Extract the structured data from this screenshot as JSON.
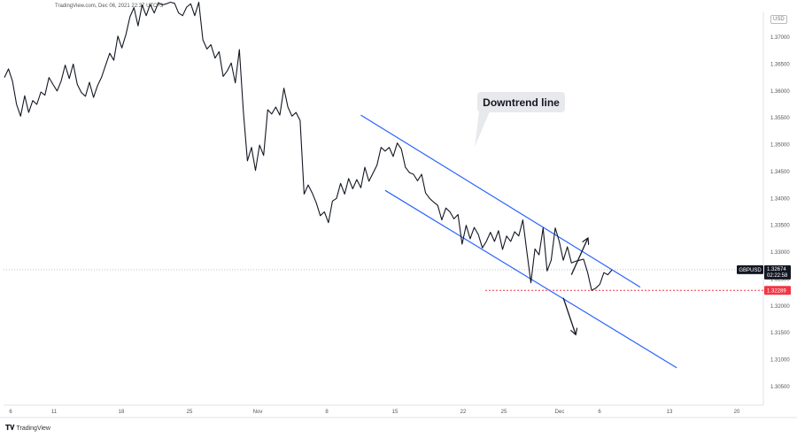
{
  "header": {
    "source_text": "TradingView.com, Dec 06, 2021 22:37 UTC+3"
  },
  "currency": "USD",
  "footer": {
    "logo_text": "TradingView",
    "logo_icon": "tradingview-logo-icon"
  },
  "colors": {
    "price_line": "#131722",
    "channel": "#2962ff",
    "support_line": "#f23645",
    "badge_dark": "#131722",
    "badge_red": "#f23645",
    "axis_text": "#555555",
    "grid_dotted": "#9598a1"
  },
  "annotation": {
    "text": "Downtrend line"
  },
  "chart_data": {
    "type": "line",
    "title": "",
    "xlabel": "",
    "ylabel": "",
    "grid": false,
    "legend": "none",
    "ylim": [
      1.3025,
      1.3765
    ],
    "x_ticks": [
      "6",
      "11",
      "18",
      "25",
      "Nov",
      "8",
      "15",
      "22",
      "25",
      "Dec",
      "6",
      "13",
      "20"
    ],
    "y_ticks": [
      "1.37000",
      "1.36500",
      "1.36000",
      "1.35500",
      "1.35000",
      "1.34500",
      "1.34000",
      "1.33500",
      "1.33000",
      "1.32500",
      "1.32000",
      "1.31500",
      "1.31000",
      "1.30500"
    ],
    "series": [
      {
        "name": "GBPUSD",
        "last_value": "1.32674",
        "countdown": "02:22:58",
        "values": [
          1.3625,
          1.3641,
          1.3618,
          1.3575,
          1.3553,
          1.3591,
          1.356,
          1.3582,
          1.3575,
          1.3598,
          1.3592,
          1.3625,
          1.3612,
          1.36,
          1.3618,
          1.3648,
          1.3623,
          1.365,
          1.3612,
          1.3597,
          1.359,
          1.3616,
          1.3588,
          1.361,
          1.3626,
          1.3648,
          1.367,
          1.3657,
          1.3702,
          1.368,
          1.3705,
          1.3738,
          1.3755,
          1.3721,
          1.376,
          1.374,
          1.3761,
          1.3745,
          1.3764,
          1.376,
          1.3762,
          1.3765,
          1.3763,
          1.3745,
          1.374,
          1.3756,
          1.3762,
          1.374,
          1.3765,
          1.3695,
          1.3678,
          1.3686,
          1.3661,
          1.3673,
          1.3627,
          1.3637,
          1.3652,
          1.3615,
          1.3677,
          1.3562,
          1.347,
          1.3495,
          1.3452,
          1.3499,
          1.348,
          1.3565,
          1.3557,
          1.357,
          1.3555,
          1.3605,
          1.357,
          1.3553,
          1.356,
          1.3545,
          1.3408,
          1.3425,
          1.341,
          1.3392,
          1.3368,
          1.3375,
          1.3355,
          1.3395,
          1.34,
          1.3428,
          1.3408,
          1.3437,
          1.3418,
          1.3435,
          1.342,
          1.3458,
          1.3432,
          1.3447,
          1.3462,
          1.3495,
          1.3488,
          1.3495,
          1.3478,
          1.3503,
          1.3492,
          1.3458,
          1.3448,
          1.3445,
          1.3433,
          1.3445,
          1.341,
          1.34,
          1.3393,
          1.3387,
          1.336,
          1.3382,
          1.3375,
          1.3362,
          1.337,
          1.3315,
          1.335,
          1.3325,
          1.3346,
          1.3333,
          1.3308,
          1.332,
          1.3337,
          1.332,
          1.334,
          1.3305,
          1.333,
          1.332,
          1.3338,
          1.333,
          1.336,
          1.33,
          1.3243,
          1.3306,
          1.3295,
          1.3345,
          1.3265,
          1.3285,
          1.3345,
          1.332,
          1.3285,
          1.331,
          1.328,
          1.3283,
          1.3285,
          1.3287,
          1.3262,
          1.3229,
          1.3233,
          1.324,
          1.3262,
          1.3258,
          1.3267
        ]
      }
    ],
    "support_level": "1.32289",
    "channel": {
      "upper_start": {
        "index": 88,
        "value": 1.3555
      },
      "upper_end": {
        "index": 157,
        "value": 1.3235
      },
      "lower_start": {
        "index": 94,
        "value": 1.3415
      },
      "lower_end": {
        "index": 166,
        "value": 1.3085
      }
    },
    "arrows": [
      {
        "direction": "up",
        "from_index": 140,
        "from_value": 1.3258,
        "to_index": 144,
        "to_value": 1.3325
      },
      {
        "direction": "down",
        "from_index": 138,
        "from_value": 1.3215,
        "to_index": 141,
        "to_value": 1.3148
      }
    ]
  }
}
